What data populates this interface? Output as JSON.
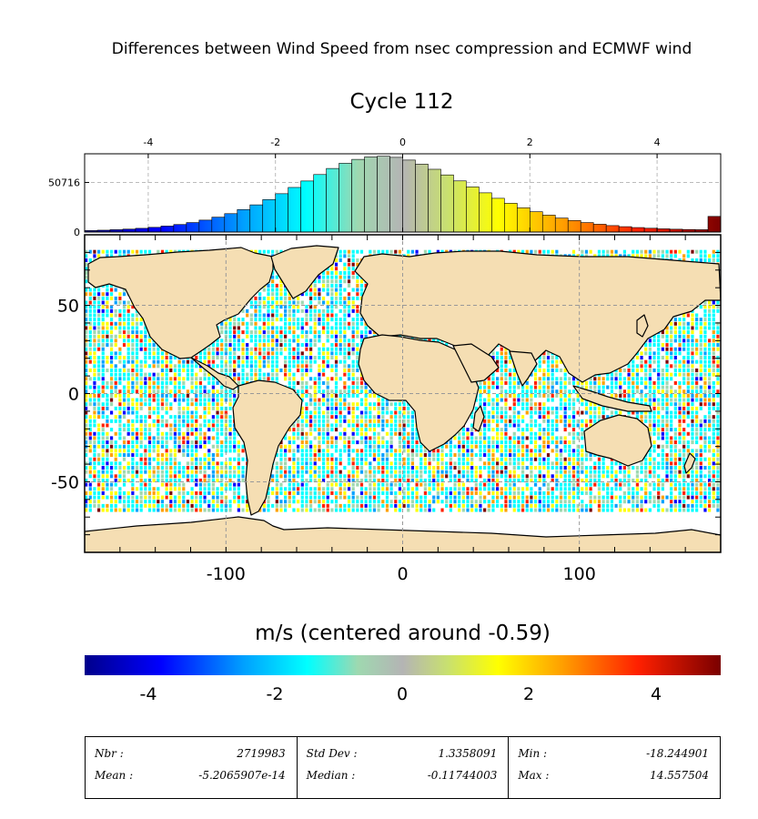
{
  "title": "Differences between Wind Speed from nsec compression and ECMWF wind",
  "subtitle": "Cycle 112",
  "colorbar": {
    "label": "m/s (centered around -0.59)",
    "ticks": [
      "-4",
      "-2",
      "0",
      "2",
      "4"
    ],
    "tick_values": [
      -4,
      -2,
      0,
      2,
      4
    ],
    "range": [
      -5,
      5
    ],
    "colors": [
      "#00008b",
      "#0000ff",
      "#00a0ff",
      "#00ffff",
      "#b4b4b4",
      "#ffff00",
      "#ffa000",
      "#ff2000",
      "#7a0000"
    ]
  },
  "colors": {
    "land": "#f5deb3",
    "coast": "#000000"
  },
  "chart_data": [
    {
      "type": "bar",
      "name": "histogram",
      "x_ticks": [
        "-4",
        "-2",
        "0",
        "2",
        "4"
      ],
      "x_tick_values": [
        -4,
        -2,
        0,
        2,
        4
      ],
      "xlim": [
        -5,
        5
      ],
      "y_ticks": [
        "50716",
        "0"
      ],
      "y_tick_values": [
        50716,
        0
      ],
      "ylim": [
        0,
        80000
      ],
      "grid": true,
      "bin_centers": [
        -4.9,
        -4.7,
        -4.5,
        -4.3,
        -4.1,
        -3.9,
        -3.7,
        -3.5,
        -3.3,
        -3.1,
        -2.9,
        -2.7,
        -2.5,
        -2.3,
        -2.1,
        -1.9,
        -1.7,
        -1.5,
        -1.3,
        -1.1,
        -0.9,
        -0.7,
        -0.5,
        -0.3,
        -0.1,
        0.1,
        0.3,
        0.5,
        0.7,
        0.9,
        1.1,
        1.3,
        1.5,
        1.7,
        1.9,
        2.1,
        2.3,
        2.5,
        2.7,
        2.9,
        3.1,
        3.3,
        3.5,
        3.7,
        3.9,
        4.1,
        4.3,
        4.5,
        4.7,
        4.9
      ],
      "values": [
        1500,
        1900,
        2400,
        3000,
        3800,
        4800,
        6100,
        7700,
        9700,
        12200,
        15200,
        18800,
        23000,
        27800,
        33200,
        39200,
        45600,
        52200,
        58800,
        65000,
        70300,
        74300,
        76800,
        77500,
        76400,
        73600,
        69400,
        64200,
        58400,
        52300,
        46100,
        40100,
        34500,
        29400,
        24800,
        20800,
        17300,
        14300,
        11800,
        9700,
        8000,
        6600,
        5500,
        4600,
        3900,
        3300,
        2900,
        2600,
        2400,
        16000
      ]
    },
    {
      "type": "heatmap",
      "name": "map",
      "x_ticks": [
        "-100",
        "0",
        "100"
      ],
      "x_tick_values": [
        -100,
        0,
        100
      ],
      "xlim": [
        -180,
        180
      ],
      "y_ticks": [
        "50",
        "0",
        "-50"
      ],
      "y_tick_values": [
        50,
        0,
        -50
      ],
      "ylim": [
        -90,
        90
      ],
      "grid": true
    }
  ],
  "stats": {
    "col1": {
      "k1": "Nbr :",
      "v1": "2719983",
      "k2": "Mean :",
      "v2": "-5.2065907e-14"
    },
    "col2": {
      "k1": "Std Dev :",
      "v1": "1.3358091",
      "k2": "Median :",
      "v2": "-0.11744003"
    },
    "col3": {
      "k1": "Min :",
      "v1": "-18.244901",
      "k2": "Max :",
      "v2": "14.557504"
    }
  }
}
